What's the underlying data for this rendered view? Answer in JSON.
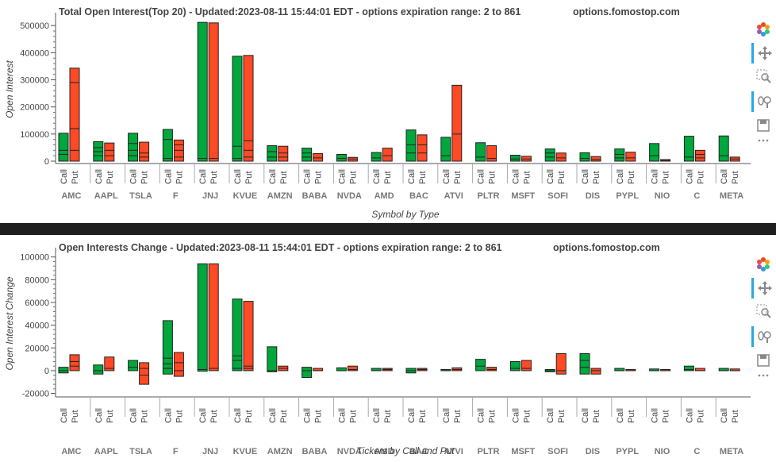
{
  "chart_data": [
    {
      "type": "bar",
      "title": "Total Open Interest(Top 20) - Updated:2023-08-11 15:44:01 EDT - options expiration range: 2 to 861",
      "source": "options.fomostop.com",
      "xlabel": "Symbol by Type",
      "ylabel": "Open Interest",
      "ylim": [
        0,
        530000
      ],
      "yticks": [
        0,
        100000,
        200000,
        300000,
        400000,
        500000
      ],
      "type_labels": [
        "Call",
        "Put"
      ],
      "categories": [
        "AMC",
        "AAPL",
        "TSLA",
        "F",
        "JNJ",
        "KVUE",
        "AMZN",
        "BABA",
        "NVDA",
        "AMD",
        "BAC",
        "ATVI",
        "PLTR",
        "MSFT",
        "SOFI",
        "DIS",
        "PYPL",
        "NIO",
        "C",
        "META"
      ],
      "series": [
        {
          "name": "Call",
          "values": [
            103000,
            72000,
            103000,
            117000,
            512000,
            387000,
            57000,
            48000,
            25000,
            32000,
            115000,
            88000,
            68000,
            22000,
            45000,
            31000,
            45000,
            65000,
            92000,
            93000
          ],
          "segments": [
            [
              25000,
              40000
            ],
            [
              20000,
              35000,
              50000
            ],
            [
              20000,
              40000,
              65000
            ],
            [
              10000,
              80000
            ],
            [
              10000
            ],
            [
              10000,
              55000
            ],
            [
              15000,
              35000
            ],
            [
              15000,
              30000
            ],
            [
              10000
            ],
            [
              12000
            ],
            [
              30000,
              60000
            ],
            [
              20000
            ],
            [
              15000
            ],
            [
              8000
            ],
            [
              15000,
              30000
            ],
            [
              10000
            ],
            [
              12000,
              25000
            ],
            [
              20000
            ],
            [
              15000
            ],
            [
              20000
            ]
          ]
        },
        {
          "name": "Put",
          "values": [
            343000,
            67000,
            70000,
            78000,
            510000,
            390000,
            55000,
            28000,
            14000,
            48000,
            97000,
            280000,
            57000,
            18000,
            30000,
            17000,
            33000,
            6000,
            40000,
            15000
          ],
          "segments": [
            [
              40000,
              120000,
              290000
            ],
            [
              20000,
              40000
            ],
            [
              15000,
              30000
            ],
            [
              15000,
              40000,
              60000
            ],
            [
              10000
            ],
            [
              15000,
              40000,
              75000
            ],
            [
              15000,
              30000
            ],
            [
              12000
            ],
            [
              8000
            ],
            [
              20000
            ],
            [
              30000,
              60000
            ],
            [
              100000
            ],
            [
              10000
            ],
            [
              8000
            ],
            [
              12000
            ],
            [
              6000
            ],
            [
              12000
            ],
            [
              2000
            ],
            [
              12000,
              25000
            ],
            [
              8000
            ]
          ]
        }
      ],
      "colors": {
        "call": "#00a73c",
        "put": "#ff4a25"
      }
    },
    {
      "type": "bar",
      "title": "Open Interests Change - Updated:2023-08-11 15:44:01 EDT - options expiration range: 2 to 861",
      "source": "options.fomostop.com",
      "xlabel": "Tickers by Call and Put",
      "ylabel": "Open Interest Change",
      "ylim": [
        -21000,
        104000
      ],
      "yticks": [
        -20000,
        0,
        20000,
        40000,
        60000,
        80000,
        100000
      ],
      "type_labels": [
        "Call",
        "Put"
      ],
      "categories": [
        "AMC",
        "AAPL",
        "TSLA",
        "F",
        "JNJ",
        "KVUE",
        "AMZN",
        "BABA",
        "NVDA",
        "AMD",
        "BAC",
        "ATVI",
        "PLTR",
        "MSFT",
        "SOFI",
        "DIS",
        "PYPL",
        "NIO",
        "C",
        "META"
      ],
      "series": [
        {
          "name": "Call",
          "ranges": [
            [
              -2000,
              3000
            ],
            [
              -3000,
              5000
            ],
            [
              0,
              9000
            ],
            [
              -3000,
              44000
            ],
            [
              -500,
              94000
            ],
            [
              0,
              63000
            ],
            [
              -1000,
              21000
            ],
            [
              -6000,
              3000
            ],
            [
              0,
              2500
            ],
            [
              0,
              2000
            ],
            [
              -2000,
              2000
            ],
            [
              0,
              1000
            ],
            [
              0,
              10000
            ],
            [
              0,
              8000
            ],
            [
              -1000,
              1000
            ],
            [
              -3000,
              15000
            ],
            [
              0,
              2000
            ],
            [
              0,
              1500
            ],
            [
              0,
              4000
            ],
            [
              0,
              2000
            ]
          ],
          "segments": [
            [
              0
            ],
            [
              0
            ],
            [
              3000
            ],
            [
              2000,
              6000,
              11000
            ],
            [
              1000
            ],
            [
              2000,
              9000,
              13000
            ],
            [
              0
            ],
            [
              0
            ],
            [
              0
            ],
            [
              0
            ],
            [
              0
            ],
            [
              0
            ],
            [
              4000
            ],
            [
              2000
            ],
            [
              0
            ],
            [
              3000,
              9000
            ],
            [
              0
            ],
            [
              0
            ],
            [
              1000
            ],
            [
              0
            ]
          ]
        },
        {
          "name": "Put",
          "ranges": [
            [
              0,
              14000
            ],
            [
              0,
              12000
            ],
            [
              -12000,
              7000
            ],
            [
              -5000,
              16000
            ],
            [
              0,
              94000
            ],
            [
              0,
              61000
            ],
            [
              0,
              4000
            ],
            [
              0,
              2000
            ],
            [
              0,
              4000
            ],
            [
              0,
              2000
            ],
            [
              0,
              2000
            ],
            [
              0,
              2500
            ],
            [
              0,
              3000
            ],
            [
              0,
              9000
            ],
            [
              -3000,
              15000
            ],
            [
              -3000,
              2000
            ],
            [
              0,
              1000
            ],
            [
              0,
              1000
            ],
            [
              0,
              2000
            ],
            [
              0,
              1500
            ]
          ],
          "segments": [
            [
              4000,
              8000
            ],
            [
              2000
            ],
            [
              -4000,
              2000
            ],
            [
              0,
              7000
            ],
            [
              2000
            ],
            [
              2000,
              4000
            ],
            [
              2000
            ],
            [
              0
            ],
            [
              1000
            ],
            [
              1000
            ],
            [
              1000
            ],
            [
              1000
            ],
            [
              1000
            ],
            [
              2000
            ],
            [
              0
            ],
            [
              0
            ],
            [
              0
            ],
            [
              0
            ],
            [
              0
            ],
            [
              0
            ]
          ]
        }
      ],
      "colors": {
        "call": "#00a73c",
        "put": "#ff4a25"
      }
    }
  ],
  "toolbar": {
    "tools": [
      {
        "icon": "bokeh-logo-icon",
        "active": false
      },
      {
        "icon": "pan-move-icon",
        "active": true
      },
      {
        "icon": "box-zoom-icon",
        "active": false
      },
      {
        "icon": "wheel-zoom-icon",
        "active": true
      },
      {
        "icon": "save-icon",
        "active": false
      },
      {
        "icon": "more-icon",
        "active": false
      }
    ]
  }
}
